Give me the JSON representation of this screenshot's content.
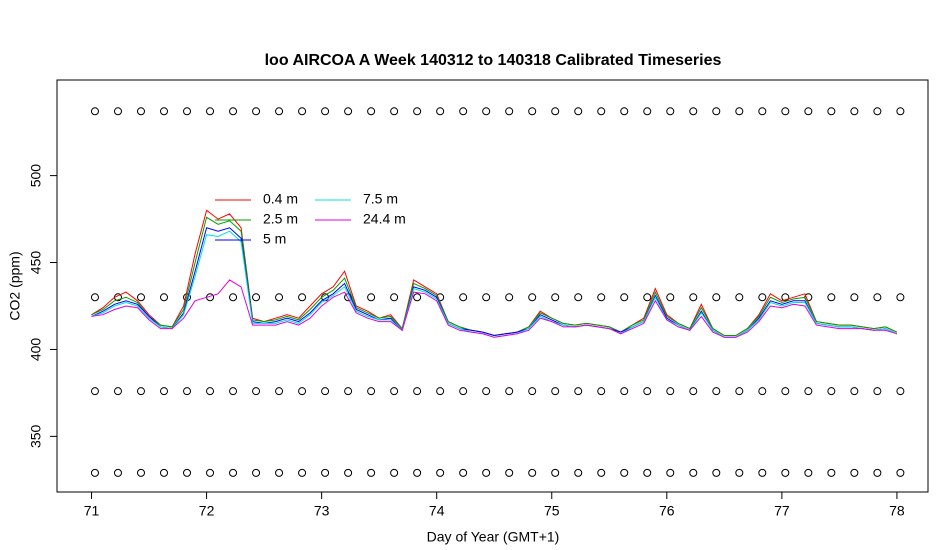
{
  "chart_data": {
    "type": "line",
    "title": "loo AIRCOA A  Week 140312 to 140318  Calibrated Timeseries",
    "xlabel": "Day of Year (GMT+1)",
    "ylabel": "CO2 (ppm)",
    "xlim": [
      70.7,
      78.27
    ],
    "ylim": [
      318,
      555
    ],
    "xticks": [
      71,
      72,
      73,
      74,
      75,
      76,
      77,
      78
    ],
    "yticks": [
      350,
      400,
      450,
      500
    ],
    "legend": "topleft",
    "x": [
      71.0,
      71.1,
      71.2,
      71.3,
      71.4,
      71.5,
      71.6,
      71.7,
      71.8,
      71.9,
      72.0,
      72.1,
      72.2,
      72.3,
      72.4,
      72.5,
      72.6,
      72.7,
      72.8,
      72.9,
      73.0,
      73.1,
      73.2,
      73.3,
      73.4,
      73.5,
      73.6,
      73.7,
      73.8,
      73.9,
      74.0,
      74.1,
      74.2,
      74.3,
      74.4,
      74.5,
      74.6,
      74.7,
      74.8,
      74.9,
      75.0,
      75.1,
      75.2,
      75.3,
      75.4,
      75.5,
      75.6,
      75.7,
      75.8,
      75.9,
      76.0,
      76.1,
      76.2,
      76.3,
      76.4,
      76.5,
      76.6,
      76.7,
      76.8,
      76.9,
      77.0,
      77.1,
      77.2,
      77.3,
      77.4,
      77.5,
      77.6,
      77.7,
      77.8,
      77.9,
      78.0
    ],
    "series": [
      {
        "name": "0.4 m",
        "color": "#ff0000",
        "values": [
          420,
          424,
          430,
          433,
          428,
          420,
          414,
          413,
          425,
          455,
          480,
          475,
          478,
          470,
          418,
          416,
          418,
          420,
          418,
          425,
          432,
          436,
          445,
          425,
          422,
          418,
          420,
          412,
          440,
          436,
          432,
          416,
          413,
          411,
          410,
          408,
          409,
          410,
          413,
          422,
          418,
          415,
          414,
          415,
          414,
          413,
          410,
          414,
          418,
          435,
          420,
          415,
          412,
          426,
          412,
          408,
          408,
          412,
          420,
          432,
          428,
          430,
          432,
          416,
          415,
          414,
          414,
          413,
          412,
          413,
          410
        ]
      },
      {
        "name": "2.5 m",
        "color": "#00a000",
        "values": [
          420,
          423,
          428,
          430,
          427,
          419,
          414,
          413,
          423,
          450,
          476,
          472,
          474,
          468,
          417,
          416,
          417,
          419,
          417,
          423,
          430,
          434,
          441,
          424,
          421,
          418,
          419,
          412,
          438,
          435,
          431,
          416,
          413,
          411,
          410,
          408,
          409,
          410,
          413,
          421,
          418,
          415,
          414,
          415,
          414,
          413,
          410,
          414,
          417,
          433,
          419,
          415,
          412,
          424,
          412,
          408,
          408,
          412,
          419,
          430,
          427,
          429,
          430,
          416,
          415,
          414,
          414,
          413,
          412,
          413,
          410
        ]
      },
      {
        "name": "5 m",
        "color": "#0000ff",
        "values": [
          419,
          422,
          426,
          428,
          426,
          419,
          413,
          412,
          421,
          445,
          470,
          468,
          470,
          464,
          416,
          415,
          416,
          418,
          416,
          421,
          428,
          432,
          438,
          423,
          420,
          417,
          418,
          411,
          436,
          434,
          430,
          415,
          412,
          411,
          410,
          408,
          409,
          410,
          412,
          420,
          417,
          414,
          413,
          414,
          413,
          412,
          410,
          413,
          416,
          431,
          418,
          414,
          411,
          422,
          411,
          407,
          407,
          411,
          418,
          428,
          426,
          428,
          428,
          415,
          414,
          413,
          413,
          412,
          411,
          412,
          409
        ]
      },
      {
        "name": "7.5 m",
        "color": "#00e0e0",
        "values": [
          419,
          421,
          425,
          427,
          425,
          418,
          413,
          412,
          420,
          442,
          466,
          465,
          468,
          462,
          415,
          415,
          415,
          417,
          415,
          420,
          427,
          431,
          436,
          422,
          419,
          417,
          417,
          411,
          435,
          433,
          429,
          415,
          412,
          410,
          409,
          407,
          408,
          409,
          412,
          419,
          416,
          414,
          413,
          414,
          413,
          412,
          409,
          413,
          416,
          430,
          417,
          414,
          411,
          421,
          411,
          407,
          407,
          411,
          417,
          427,
          425,
          427,
          427,
          415,
          414,
          413,
          413,
          412,
          411,
          412,
          409
        ]
      },
      {
        "name": "24.4 m",
        "color": "#e000e0",
        "values": [
          419,
          420,
          423,
          425,
          424,
          417,
          412,
          412,
          418,
          428,
          430,
          432,
          440,
          436,
          414,
          414,
          414,
          416,
          414,
          418,
          425,
          430,
          433,
          421,
          418,
          416,
          416,
          411,
          433,
          432,
          428,
          414,
          411,
          410,
          409,
          407,
          408,
          409,
          411,
          418,
          416,
          413,
          413,
          414,
          413,
          412,
          409,
          412,
          415,
          428,
          417,
          413,
          411,
          419,
          410,
          407,
          407,
          410,
          416,
          425,
          424,
          426,
          425,
          414,
          413,
          412,
          412,
          412,
          411,
          411,
          409
        ]
      }
    ],
    "marker_color": "#000000",
    "marker_x": [
      71.03,
      71.23,
      71.43,
      71.63,
      71.83,
      72.03,
      72.23,
      72.43,
      72.63,
      72.83,
      73.03,
      73.23,
      73.43,
      73.63,
      73.83,
      74.03,
      74.23,
      74.43,
      74.63,
      74.83,
      75.03,
      75.23,
      75.43,
      75.63,
      75.83,
      76.03,
      76.23,
      76.43,
      76.63,
      76.83,
      77.03,
      77.23,
      77.43,
      77.63,
      77.83,
      78.03
    ],
    "marker_rows": [
      [
        537,
        537,
        537,
        537,
        537,
        537,
        537,
        537,
        537,
        537,
        537,
        537,
        537,
        537,
        537,
        537,
        537,
        537,
        537,
        537,
        537,
        537,
        537,
        537,
        537,
        537,
        537,
        537,
        537,
        537,
        537,
        537,
        537,
        537,
        537,
        537
      ],
      [
        430,
        430,
        430,
        430,
        430,
        430,
        430,
        430,
        430,
        430,
        430,
        430,
        430,
        430,
        430,
        430,
        430,
        430,
        430,
        430,
        430,
        430,
        430,
        430,
        430,
        430,
        430,
        430,
        430,
        430,
        430,
        430,
        430,
        430,
        430,
        430
      ],
      [
        376,
        376,
        376,
        376,
        376,
        376,
        376,
        376,
        376,
        376,
        376,
        376,
        376,
        376,
        376,
        376,
        376,
        376,
        376,
        376,
        376,
        376,
        376,
        376,
        376,
        376,
        376,
        376,
        376,
        376,
        376,
        376,
        376,
        376,
        376,
        376
      ],
      [
        329,
        329,
        329,
        329,
        329,
        329,
        329,
        329,
        329,
        329,
        329,
        329,
        329,
        329,
        329,
        329,
        329,
        329,
        329,
        329,
        329,
        329,
        329,
        329,
        329,
        329,
        329,
        329,
        329,
        329,
        329,
        329,
        329,
        329,
        329,
        329
      ]
    ]
  }
}
